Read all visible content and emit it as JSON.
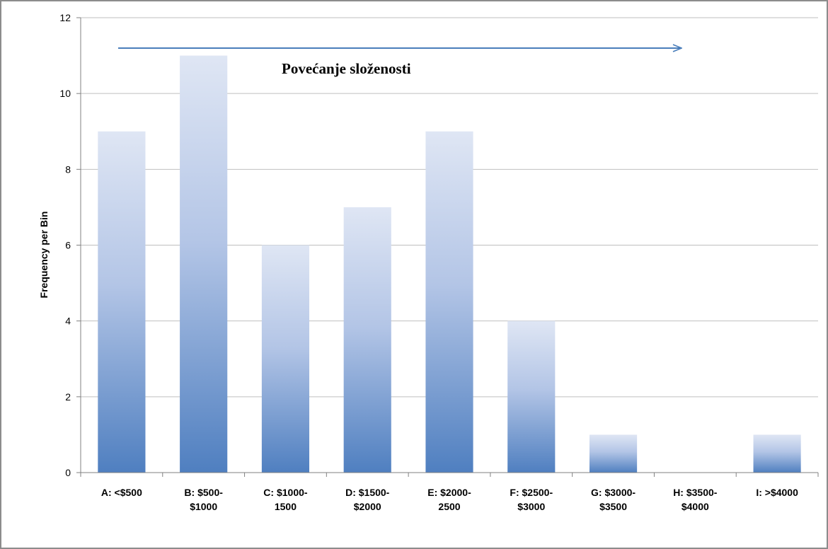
{
  "chart_data": {
    "type": "bar",
    "categories": [
      [
        "A: <$500"
      ],
      [
        "B: $500-",
        "$1000"
      ],
      [
        "C: $1000-",
        "1500"
      ],
      [
        "D: $1500-",
        "$2000"
      ],
      [
        "E: $2000-",
        "2500"
      ],
      [
        "F: $2500-",
        "$3000"
      ],
      [
        "G: $3000-",
        "$3500"
      ],
      [
        "H: $3500-",
        "$4000"
      ],
      [
        "I: >$4000"
      ]
    ],
    "values": [
      9,
      11,
      6,
      7,
      9,
      4,
      1,
      0,
      1
    ],
    "ylabel": "Frequency per  Bin",
    "ylim": [
      0,
      12
    ],
    "yticks": [
      0,
      2,
      4,
      6,
      8,
      10,
      12
    ],
    "grid": true,
    "annotation": "Povećanje složenosti",
    "colors": {
      "bar_top": "#dfe6f4",
      "bar_bottom": "#4f7fc0",
      "arrow": "#4a7ebb",
      "gridline": "#bfbfbf",
      "axis": "#808080"
    }
  }
}
